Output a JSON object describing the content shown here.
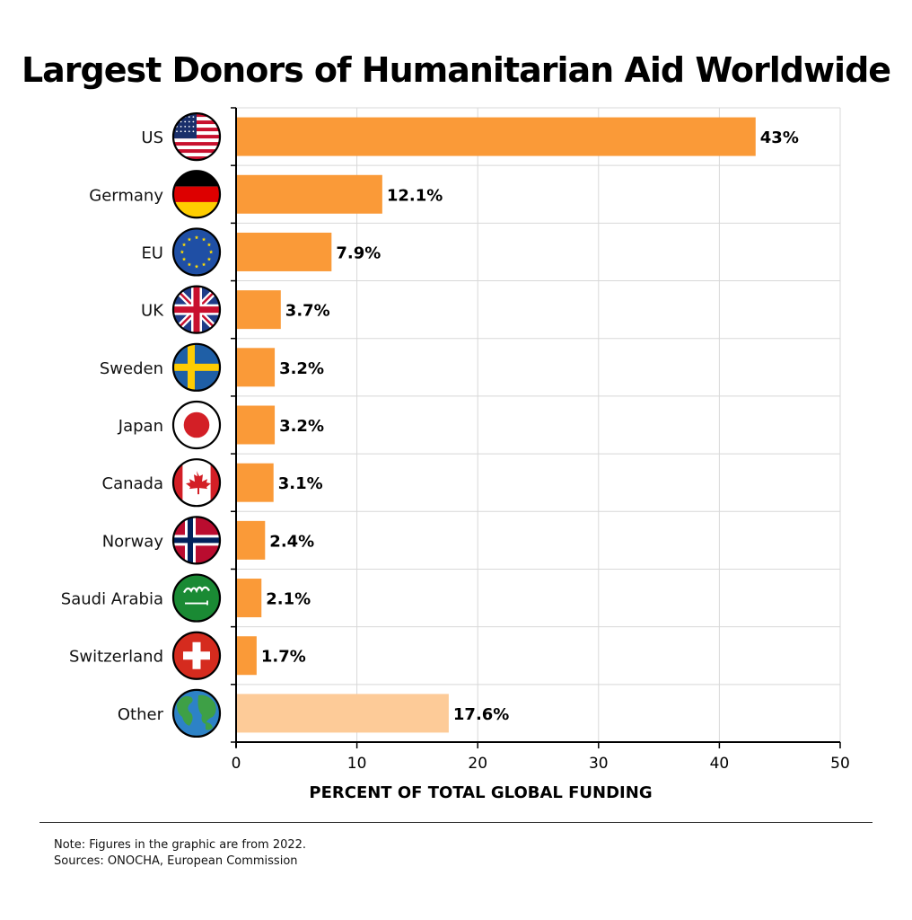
{
  "chart_data": {
    "type": "bar",
    "orientation": "horizontal",
    "title": "Largest Donors of Humanitarian Aid Worldwide",
    "xlabel": "PERCENT OF TOTAL GLOBAL FUNDING",
    "ylabel": "",
    "xlim": [
      0,
      50
    ],
    "xticks": [
      0,
      10,
      20,
      30,
      40,
      50
    ],
    "grid": true,
    "categories": [
      "US",
      "Germany",
      "EU",
      "UK",
      "Sweden",
      "Japan",
      "Canada",
      "Norway",
      "Saudi Arabia",
      "Switzerland",
      "Other"
    ],
    "values": [
      43,
      12.1,
      7.9,
      3.7,
      3.2,
      3.2,
      3.1,
      2.4,
      2.1,
      1.7,
      17.6
    ],
    "data_labels": [
      "43%",
      "12.1%",
      "7.9%",
      "3.7%",
      "3.2%",
      "3.2%",
      "3.1%",
      "2.4%",
      "2.1%",
      "1.7%",
      "17.6%"
    ],
    "icons": [
      "us-flag-icon",
      "germany-flag-icon",
      "eu-flag-icon",
      "uk-flag-icon",
      "sweden-flag-icon",
      "japan-flag-icon",
      "canada-flag-icon",
      "norway-flag-icon",
      "saudi-arabia-flag-icon",
      "switzerland-flag-icon",
      "globe-icon"
    ],
    "colors": {
      "bar": "#fa9a38",
      "bar_other": "#fdcb98",
      "grid": "#d8d8d8",
      "axis": "#000000"
    }
  },
  "notes": {
    "note": "Note: Figures in the graphic are from 2022.",
    "sources": "Sources: ONOCHA, European Commission"
  }
}
